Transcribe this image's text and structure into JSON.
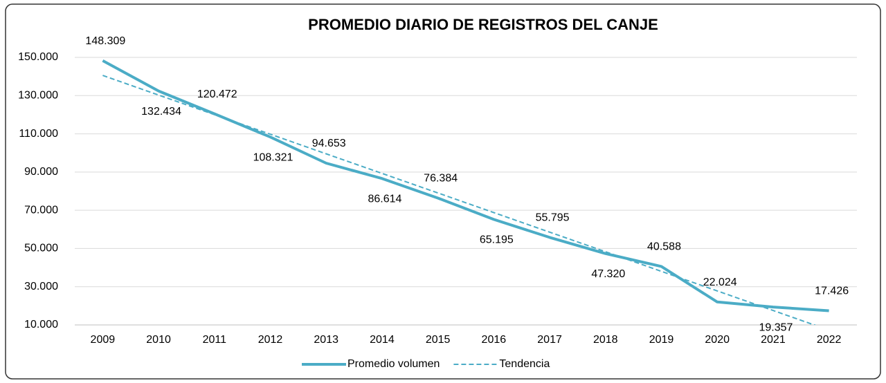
{
  "chart_data": {
    "type": "line",
    "title": "PROMEDIO DIARIO DE REGISTROS DEL CANJE",
    "categories": [
      "2009",
      "2010",
      "2011",
      "2012",
      "2013",
      "2014",
      "2015",
      "2016",
      "2017",
      "2018",
      "2019",
      "2020",
      "2021",
      "2022"
    ],
    "series": [
      {
        "name": "Promedio volumen",
        "color": "#4bacc6",
        "style": "solid",
        "values": [
          148309,
          132434,
          120472,
          108321,
          94653,
          86614,
          76384,
          65195,
          55795,
          47320,
          40588,
          22024,
          19357,
          17426
        ],
        "value_labels": [
          "148.309",
          "132.434",
          "120.472",
          "108.321",
          "94.653",
          "86.614",
          "76.384",
          "65.195",
          "55.795",
          "47.320",
          "40.588",
          "22.024",
          "19.357",
          "17.426"
        ]
      },
      {
        "name": "Tendencia",
        "color": "#4bacc6",
        "style": "dashed",
        "values": [
          140546,
          130296,
          120046,
          109796,
          99546,
          89296,
          79046,
          68796,
          58546,
          48296,
          38046,
          27796,
          17546,
          7296
        ]
      }
    ],
    "ylim": [
      10000,
      150000
    ],
    "yticks": [
      {
        "value": 10000,
        "label": "10.000"
      },
      {
        "value": 30000,
        "label": "30.000"
      },
      {
        "value": 50000,
        "label": "50.000"
      },
      {
        "value": 70000,
        "label": "70.000"
      },
      {
        "value": 90000,
        "label": "90.000"
      },
      {
        "value": 110000,
        "label": "110.000"
      },
      {
        "value": 130000,
        "label": "130.000"
      },
      {
        "value": 150000,
        "label": "150.000"
      }
    ],
    "grid": true,
    "legend": "bottom"
  }
}
